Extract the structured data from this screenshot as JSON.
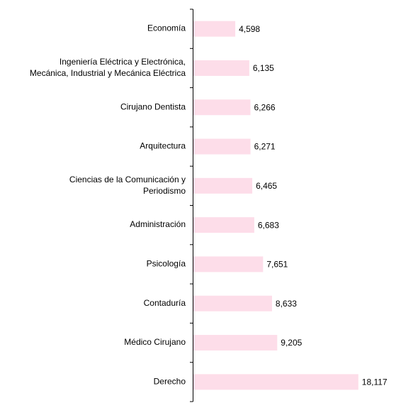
{
  "chart_data": {
    "type": "hbar",
    "categories": [
      "Economía",
      "Ingeniería Eléctrica y Electrónica,\nMecánica, Industrial y Mecánica Eléctrica",
      "Cirujano Dentista",
      "Arquitectura",
      "Ciencias de la Comunicación y\nPeriodismo",
      "Administración",
      "Psicología",
      "Contaduría",
      "Médico Cirujano",
      "Derecho"
    ],
    "values": [
      4598,
      6135,
      6266,
      6271,
      6465,
      6683,
      7651,
      8633,
      9205,
      18117
    ],
    "value_labels": [
      "4,598",
      "6,135",
      "6,266",
      "6,271",
      "6,465",
      "6,683",
      "7,651",
      "8,633",
      "9,205",
      "18,117"
    ],
    "color": "#fddde9",
    "xlim": [
      0,
      20000
    ]
  }
}
